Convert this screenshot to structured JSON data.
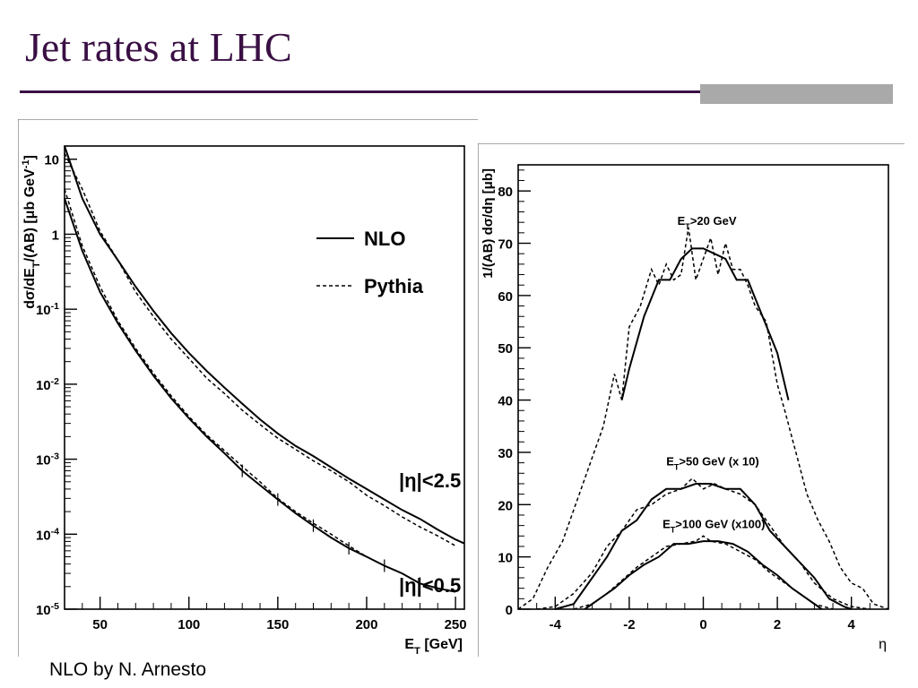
{
  "slide": {
    "title": "Jet rates at LHC",
    "footer": "NLO by N. Arnesto"
  },
  "colors": {
    "title": "#3a0f44",
    "accent_bar": "#a9a9a9",
    "line": "#000000"
  },
  "chart_data": [
    {
      "type": "line",
      "yscale": "log",
      "xlabel": "E_T [GeV]",
      "ylabel": "dσ/dE_T/(AB) [μb GeV^-1]",
      "xlim": [
        30,
        255
      ],
      "ylim": [
        1e-05,
        15
      ],
      "x_ticks": [
        50,
        100,
        150,
        200,
        250
      ],
      "y_ticks": [
        "10^-5",
        "10^-4",
        "10^-3",
        "10^-2",
        "10^-1",
        "1",
        "10"
      ],
      "legend": [
        "NLO",
        "Pythia"
      ],
      "legend_position": "top-right",
      "annotations": [
        "|η|<2.5",
        "|η|<0.5"
      ],
      "grid": false,
      "series": [
        {
          "name": "NLO",
          "group": "|η|<2.5",
          "style": "solid",
          "x": [
            30,
            40,
            50,
            60,
            70,
            80,
            90,
            100,
            110,
            120,
            130,
            140,
            150,
            160,
            170,
            180,
            190,
            200,
            210,
            220,
            230,
            240,
            250,
            255
          ],
          "y": [
            15,
            3,
            1.0,
            0.45,
            0.2,
            0.095,
            0.048,
            0.026,
            0.015,
            0.009,
            0.0055,
            0.0034,
            0.0022,
            0.0015,
            0.0011,
            0.00078,
            0.00055,
            0.0004,
            0.00029,
            0.00021,
            0.00016,
            0.000115,
            8.5e-05,
            7.5e-05
          ]
        },
        {
          "name": "Pythia",
          "group": "|η|<2.5",
          "style": "dashed",
          "x": [
            30,
            40,
            50,
            60,
            70,
            80,
            90,
            100,
            110,
            120,
            130,
            140,
            150,
            160,
            170,
            180,
            190,
            200,
            210,
            220,
            230,
            240,
            250
          ],
          "y": [
            12,
            4,
            1.1,
            0.45,
            0.17,
            0.08,
            0.04,
            0.022,
            0.012,
            0.0075,
            0.0045,
            0.0029,
            0.0019,
            0.00135,
            0.00095,
            0.0007,
            0.0005,
            0.00033,
            0.00024,
            0.00017,
            0.000125,
            9.5e-05,
            7e-05
          ]
        },
        {
          "name": "NLO",
          "group": "|η|<0.5",
          "style": "solid",
          "x": [
            30,
            40,
            50,
            60,
            70,
            80,
            90,
            100,
            110,
            120,
            130,
            140,
            150,
            160,
            170,
            180,
            190,
            200,
            210,
            220,
            230,
            240,
            250
          ],
          "y": [
            3.0,
            0.6,
            0.17,
            0.065,
            0.028,
            0.013,
            0.0065,
            0.0035,
            0.002,
            0.0012,
            0.0007,
            0.00045,
            0.00029,
            0.00019,
            0.00013,
            9e-05,
            6.5e-05,
            5e-05,
            3.8e-05,
            3e-05,
            2.2e-05,
            1.9e-05,
            1.7e-05
          ]
        },
        {
          "name": "Pythia",
          "group": "|η|<0.5",
          "style": "dashed",
          "x": [
            30,
            40,
            50,
            60,
            70,
            80,
            90,
            100,
            110,
            120,
            130,
            140,
            150,
            160,
            170,
            180,
            190,
            200
          ],
          "y": [
            4.0,
            0.7,
            0.2,
            0.07,
            0.03,
            0.014,
            0.007,
            0.0037,
            0.0021,
            0.0013,
            0.0008,
            0.0005,
            0.0003,
            0.0002,
            0.00014,
            0.0001,
            7e-05,
            5e-05
          ]
        }
      ]
    },
    {
      "type": "line",
      "xlabel": "η",
      "ylabel": "1/(AB) dσ/dη [μb]",
      "xlim": [
        -5,
        5
      ],
      "ylim": [
        0,
        85
      ],
      "x_ticks": [
        -4,
        -2,
        0,
        2,
        4
      ],
      "y_ticks": [
        0,
        10,
        20,
        30,
        40,
        50,
        60,
        70,
        80
      ],
      "annotations": [
        "E_T>20 GeV",
        "E_T>50 GeV (x 10)",
        "E_T>100 GeV (x100)"
      ],
      "grid": false,
      "series": [
        {
          "name": "NLO",
          "group": "E_T>20 GeV",
          "style": "solid",
          "x": [
            -2.2,
            -2.0,
            -1.6,
            -1.2,
            -0.9,
            -0.6,
            -0.3,
            0,
            0.3,
            0.6,
            0.9,
            1.2,
            1.6,
            2.0,
            2.3
          ],
          "y": [
            40,
            46,
            56,
            63,
            63,
            67,
            69,
            69,
            68,
            67,
            63,
            63,
            56,
            49,
            40
          ]
        },
        {
          "name": "Pythia",
          "group": "E_T>20 GeV",
          "style": "dashed",
          "x": [
            -5.0,
            -4.6,
            -4.2,
            -3.8,
            -3.4,
            -3.0,
            -2.7,
            -2.4,
            -2.2,
            -2.0,
            -1.7,
            -1.4,
            -1.2,
            -1.0,
            -0.8,
            -0.6,
            -0.4,
            -0.2,
            0,
            0.2,
            0.4,
            0.6,
            0.8,
            1.0,
            1.2,
            1.4,
            1.7,
            2.0,
            2.2,
            2.5,
            2.8,
            3.1,
            3.4,
            3.7,
            4.0,
            4.3,
            4.6,
            5.0
          ],
          "y": [
            0,
            2,
            8,
            13,
            21,
            29,
            35,
            45,
            40,
            54,
            58,
            65,
            62,
            66,
            63,
            64,
            73,
            63,
            67,
            71,
            64,
            70,
            65,
            65,
            62,
            58,
            55,
            43,
            38,
            30,
            22,
            17,
            13,
            8,
            5,
            4,
            1,
            0
          ]
        },
        {
          "name": "NLO",
          "group": "E_T>50 GeV (x 10)",
          "style": "solid",
          "x": [
            -4.0,
            -3.5,
            -3.0,
            -2.6,
            -2.2,
            -1.8,
            -1.4,
            -1.0,
            -0.6,
            -0.2,
            0.2,
            0.6,
            1.0,
            1.4,
            1.8,
            2.2,
            2.6,
            3.0,
            3.4,
            3.8,
            4.0
          ],
          "y": [
            0,
            1,
            6,
            10,
            15,
            17,
            21,
            23,
            23,
            24,
            24,
            23,
            23,
            20,
            15,
            12,
            9,
            6,
            2,
            0.5,
            0
          ]
        },
        {
          "name": "Pythia",
          "group": "E_T>50 GeV (x 10)",
          "style": "dashed",
          "x": [
            -4.5,
            -4.0,
            -3.5,
            -3.0,
            -2.6,
            -2.2,
            -1.8,
            -1.4,
            -1.0,
            -0.6,
            -0.3,
            0,
            0.3,
            0.6,
            1.0,
            1.4,
            1.8,
            2.2,
            2.6,
            3.0,
            3.5,
            4.0,
            4.5
          ],
          "y": [
            0,
            0.5,
            3,
            7,
            12,
            15,
            19,
            20,
            22,
            23,
            25,
            23,
            24,
            23,
            22,
            20,
            16,
            12,
            9,
            5,
            2,
            0.5,
            0
          ]
        },
        {
          "name": "NLO",
          "group": "E_T>100 GeV (x100)",
          "style": "solid",
          "x": [
            -3.2,
            -2.8,
            -2.4,
            -2.0,
            -1.6,
            -1.2,
            -0.8,
            -0.4,
            0,
            0.4,
            0.8,
            1.2,
            1.6,
            2.0,
            2.4,
            2.8,
            3.2
          ],
          "y": [
            0,
            2,
            4,
            6.5,
            8.5,
            10,
            12.5,
            12.5,
            13,
            13,
            12.5,
            11,
            8.5,
            6.5,
            4,
            2,
            0
          ]
        },
        {
          "name": "Pythia",
          "group": "E_T>100 GeV (x100)",
          "style": "dashed",
          "x": [
            -3.5,
            -3.0,
            -2.6,
            -2.2,
            -1.8,
            -1.4,
            -1.0,
            -0.6,
            -0.2,
            0,
            0.2,
            0.6,
            1.0,
            1.4,
            1.8,
            2.2,
            2.6,
            3.0,
            3.5
          ],
          "y": [
            0,
            1,
            3,
            5.5,
            8,
            10,
            12,
            12.5,
            13,
            14,
            13,
            12.5,
            11,
            9.5,
            7,
            5,
            3,
            1,
            0
          ]
        }
      ]
    }
  ]
}
